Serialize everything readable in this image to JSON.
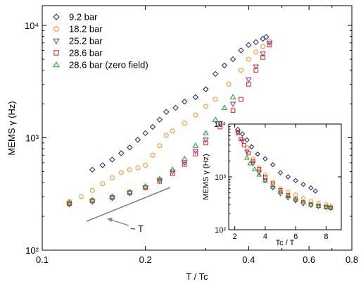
{
  "chart_data": [
    {
      "type": "scatter",
      "xlabel": "T / Tc",
      "ylabel": "MEMS γ (Hz)",
      "xscale": "log",
      "yscale": "log",
      "xlim": [
        0.1,
        0.8
      ],
      "ylim": [
        100,
        15000
      ],
      "xticks": [
        "0.1",
        "0.2",
        "0.4",
        "0.6",
        "0.8"
      ],
      "yticks": [
        "10²",
        "10³",
        "10⁴"
      ],
      "legend_position": "top-left",
      "annotation": "~ T",
      "series": [
        {
          "name": "9.2 bar",
          "color": "#1a1a80",
          "marker": "diamond-open",
          "x": [
            0.14,
            0.15,
            0.16,
            0.17,
            0.18,
            0.19,
            0.2,
            0.21,
            0.22,
            0.23,
            0.245,
            0.26,
            0.28,
            0.3,
            0.32,
            0.34,
            0.36,
            0.38,
            0.4,
            0.42,
            0.44,
            0.45
          ],
          "y": [
            520,
            570,
            640,
            730,
            820,
            960,
            1100,
            1250,
            1450,
            1700,
            1850,
            2100,
            2300,
            2700,
            3700,
            4400,
            5000,
            6000,
            6700,
            7100,
            7600,
            7900
          ]
        },
        {
          "name": "18.2 bar",
          "color": "#ff8c1a",
          "marker": "circle-open",
          "x": [
            0.12,
            0.13,
            0.14,
            0.15,
            0.16,
            0.17,
            0.18,
            0.19,
            0.2,
            0.21,
            0.22,
            0.23,
            0.24,
            0.26,
            0.28,
            0.3,
            0.32,
            0.35,
            0.38,
            0.4,
            0.42,
            0.44,
            0.46
          ],
          "y": [
            270,
            300,
            340,
            390,
            440,
            490,
            520,
            540,
            570,
            700,
            850,
            1050,
            1150,
            1350,
            1600,
            1900,
            2200,
            3000,
            4000,
            5000,
            5800,
            6500,
            7200
          ]
        },
        {
          "name": "25.2 bar",
          "color": "#8b2aa0",
          "marker": "triangle-down-open",
          "x": [
            0.12,
            0.14,
            0.16,
            0.18,
            0.2,
            0.22,
            0.24,
            0.26,
            0.28,
            0.3,
            0.33,
            0.36,
            0.4,
            0.42,
            0.44,
            0.46
          ],
          "y": [
            255,
            270,
            290,
            320,
            360,
            420,
            500,
            600,
            760,
            960,
            1350,
            2000,
            3300,
            4300,
            5600,
            7000
          ]
        },
        {
          "name": "28.6 bar",
          "color": "#e31a1c",
          "marker": "square-open",
          "x": [
            0.12,
            0.14,
            0.16,
            0.18,
            0.2,
            0.22,
            0.24,
            0.26,
            0.28,
            0.3,
            0.33,
            0.36,
            0.38,
            0.4,
            0.42,
            0.44,
            0.46
          ],
          "y": [
            260,
            275,
            295,
            325,
            360,
            410,
            480,
            580,
            720,
            900,
            1250,
            1750,
            2200,
            3000,
            4000,
            5200,
            6700
          ]
        },
        {
          "name": "28.6 bar (zero field)",
          "color": "#1a9e1a",
          "marker": "triangle-up-open",
          "x": [
            0.12,
            0.14,
            0.16,
            0.18,
            0.2,
            0.22,
            0.24,
            0.26,
            0.28,
            0.3,
            0.32,
            0.34,
            0.36
          ],
          "y": [
            265,
            280,
            300,
            330,
            370,
            430,
            520,
            650,
            850,
            1100,
            1450,
            1850,
            2300
          ]
        }
      ]
    },
    {
      "type": "scatter",
      "xlabel": "Tc / T",
      "ylabel": "MEMS γ (Hz)",
      "yscale": "log",
      "xlim": [
        1.6,
        9
      ],
      "ylim": [
        100,
        10000
      ],
      "xticks": [
        "2",
        "4",
        "6",
        "8"
      ],
      "yticks": [
        "10²",
        "10³",
        "10⁴"
      ],
      "series": [
        {
          "name": "9.2 bar",
          "color": "#1a1a80",
          "marker": "diamond-open",
          "x": [
            2.2,
            2.5,
            2.8,
            3.1,
            3.5,
            4.0,
            4.5,
            5.0,
            5.5,
            6.0,
            6.5,
            7.0,
            7.3
          ],
          "y": [
            7900,
            6500,
            5000,
            3700,
            2700,
            2200,
            1700,
            1200,
            1000,
            850,
            720,
            620,
            540
          ]
        },
        {
          "name": "18.2 bar",
          "color": "#ff8c1a",
          "marker": "circle-open",
          "x": [
            2.2,
            2.5,
            2.8,
            3.2,
            3.6,
            4.0,
            4.5,
            5.0,
            5.5,
            6.0,
            6.5,
            7.0,
            7.5,
            8.0,
            8.3
          ],
          "y": [
            7200,
            5200,
            3600,
            2200,
            1500,
            1100,
            800,
            600,
            520,
            460,
            400,
            350,
            320,
            300,
            280
          ]
        },
        {
          "name": "25.2 bar",
          "color": "#8b2aa0",
          "marker": "triangle-down-open",
          "x": [
            2.2,
            2.5,
            2.8,
            3.2,
            3.6,
            4.0,
            4.5,
            5.0,
            5.5,
            6.0,
            6.5,
            7.0,
            7.5,
            8.0,
            8.3
          ],
          "y": [
            7000,
            4800,
            3000,
            1800,
            1200,
            850,
            620,
            480,
            400,
            350,
            310,
            290,
            275,
            265,
            255
          ]
        },
        {
          "name": "28.6 bar",
          "color": "#e31a1c",
          "marker": "square-open",
          "x": [
            2.2,
            2.4,
            2.6,
            2.9,
            3.2,
            3.6,
            4.0,
            4.5,
            5.0,
            5.5,
            6.0,
            6.5,
            7.0,
            7.5,
            8.0,
            8.3
          ],
          "y": [
            6700,
            5200,
            4000,
            2800,
            2000,
            1400,
            1000,
            750,
            560,
            450,
            380,
            330,
            300,
            285,
            270,
            260
          ]
        },
        {
          "name": "28.6 bar (zero field)",
          "color": "#1a9e1a",
          "marker": "triangle-up-open",
          "x": [
            2.8,
            3.0,
            3.3,
            3.6,
            4.0,
            4.5,
            5.0,
            5.5,
            6.0,
            6.5,
            7.0,
            7.5,
            8.0,
            8.3
          ],
          "y": [
            2300,
            1800,
            1400,
            1100,
            850,
            650,
            520,
            430,
            370,
            330,
            300,
            280,
            270,
            265
          ]
        }
      ]
    }
  ]
}
